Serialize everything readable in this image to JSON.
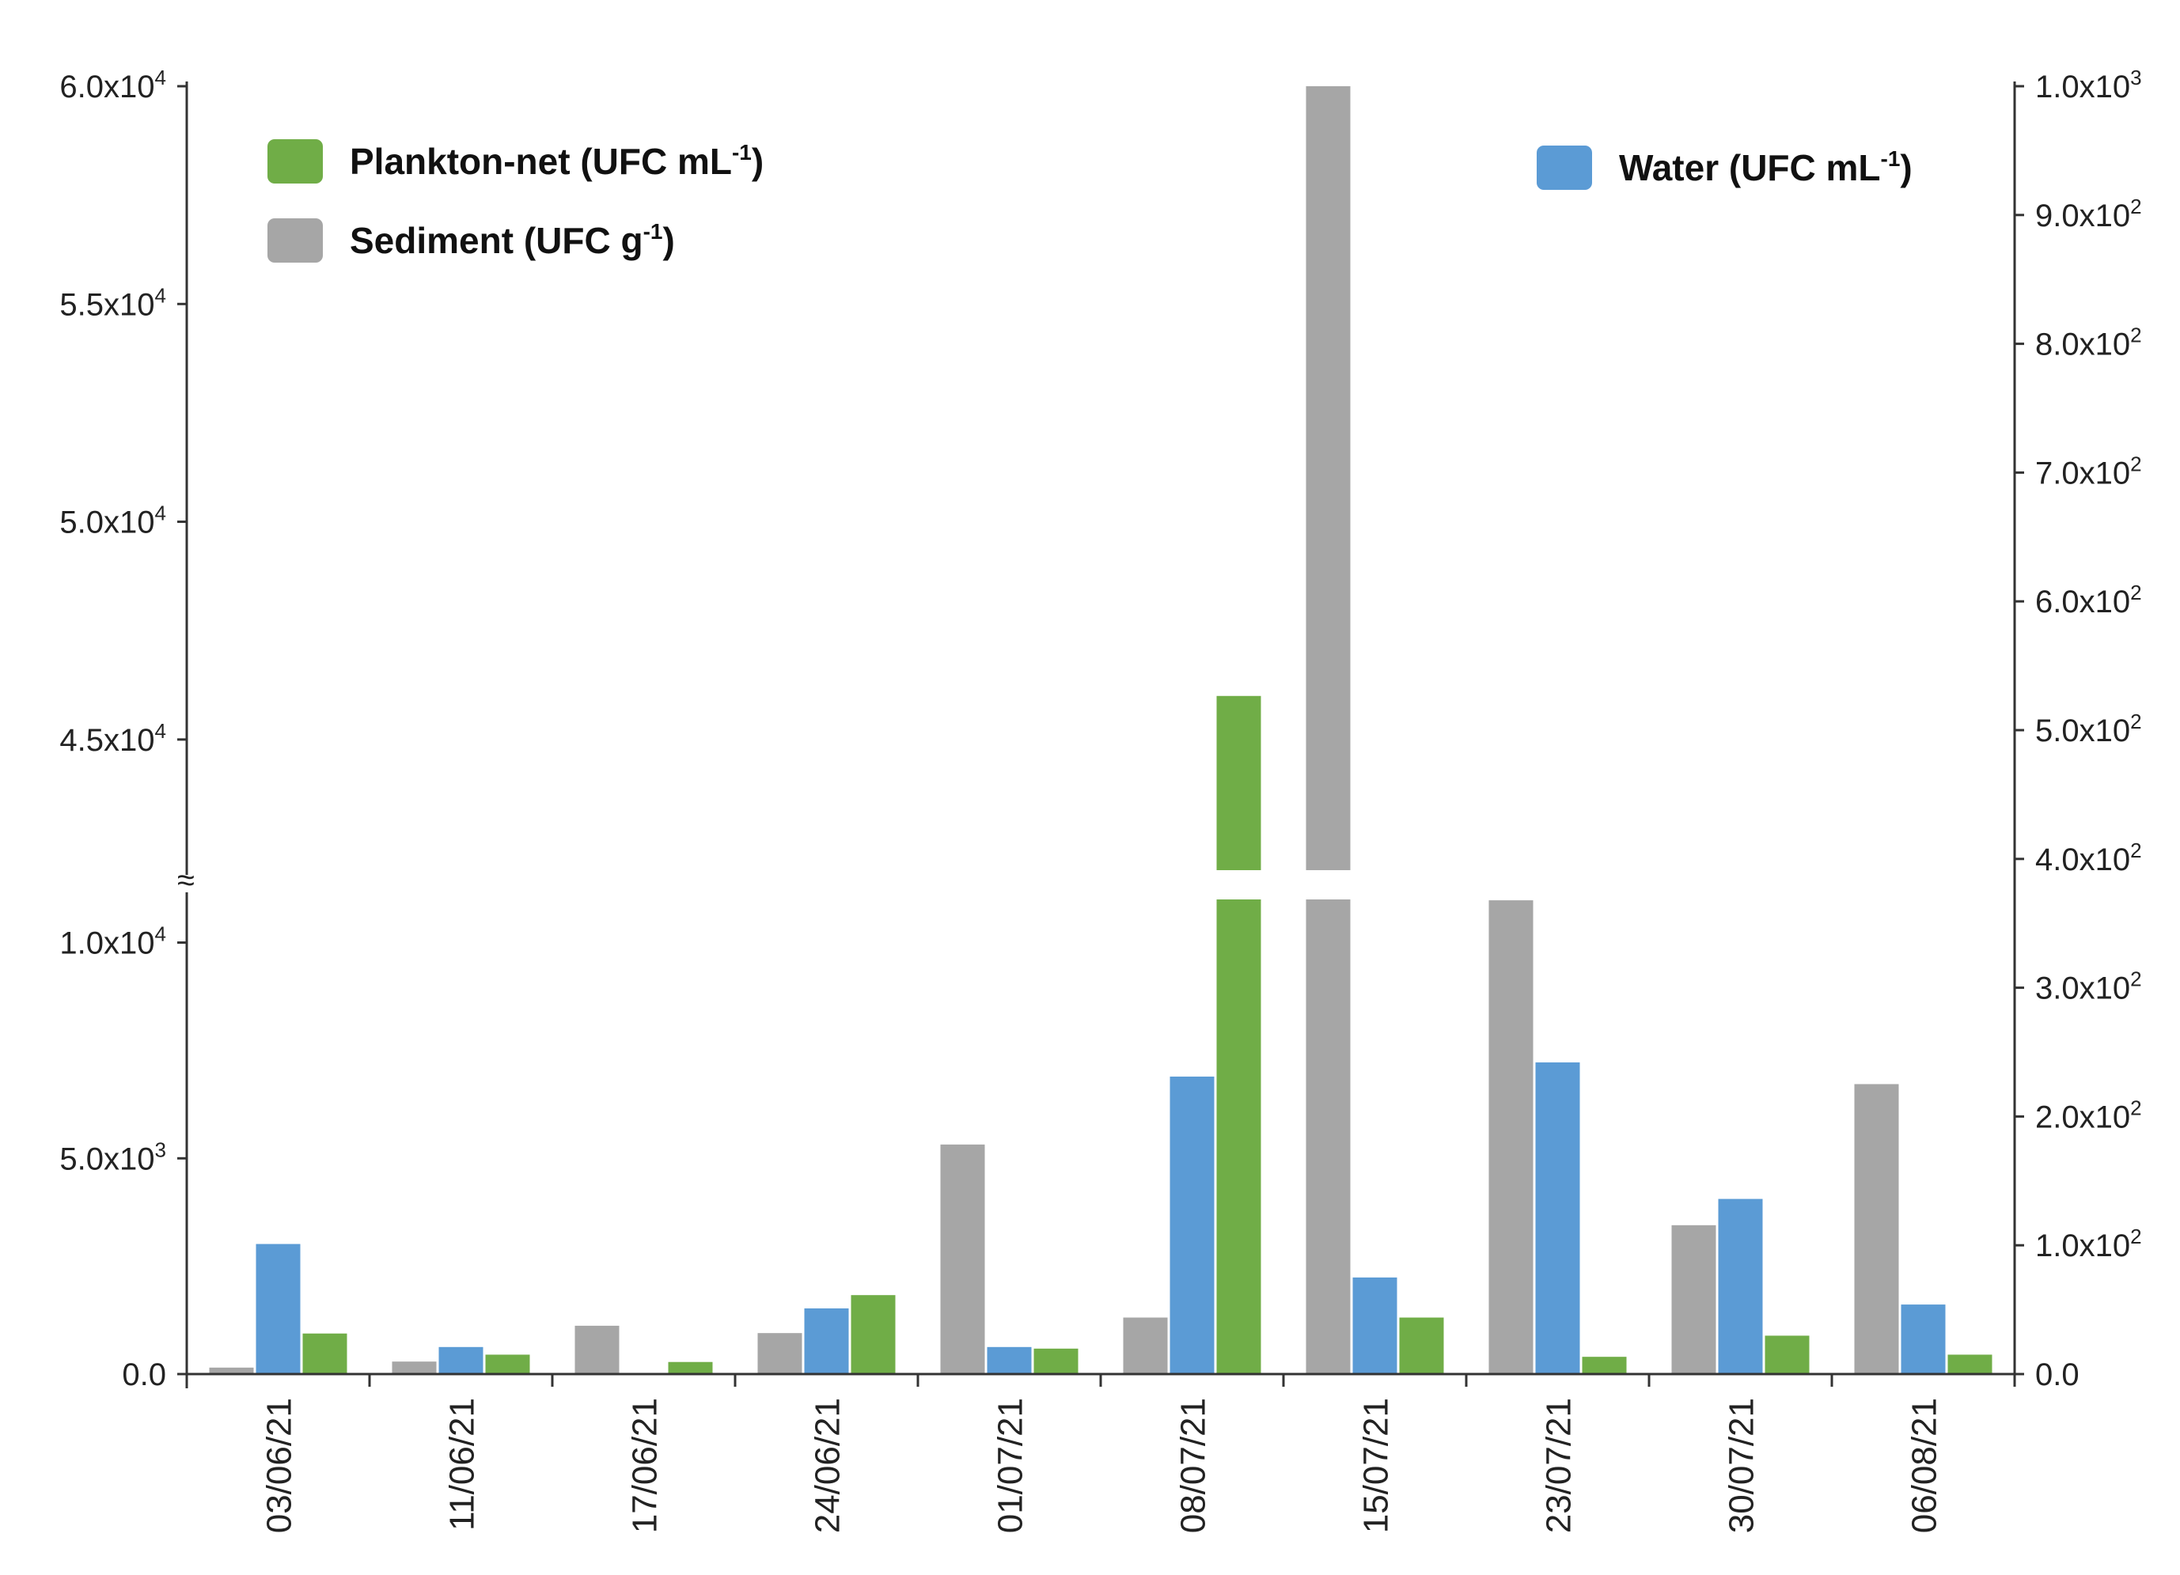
{
  "chart_data": {
    "type": "bar",
    "categories": [
      "03/06/21",
      "11/06/21",
      "17/06/21",
      "24/06/21",
      "01/07/21",
      "08/07/21",
      "15/07/21",
      "23/07/21",
      "30/07/21",
      "06/08/21"
    ],
    "series": [
      {
        "name": "Sediment (UFC g-1)",
        "axis": "left",
        "color": "#a6a6a6",
        "values": [
          150,
          290,
          1120,
          950,
          5320,
          1310,
          60000,
          10980,
          3450,
          6720
        ]
      },
      {
        "name": "Water (UFC mL-1)",
        "axis": "right",
        "color": "#5b9bd5",
        "values": [
          101,
          21,
          0,
          51,
          21,
          231,
          75,
          242,
          136,
          54
        ]
      },
      {
        "name": "Plankton-net (UFC mL-1)",
        "axis": "left",
        "color": "#70ad47",
        "values": [
          940,
          450,
          280,
          1830,
          590,
          46000,
          1310,
          400,
          890,
          450
        ]
      }
    ],
    "left_axis": {
      "lower_range": [
        0,
        11000
      ],
      "upper_range": [
        42000,
        60000
      ],
      "break": "between 11000 and 42000",
      "ticks": [
        {
          "value": 0,
          "base": "0.0",
          "exp": ""
        },
        {
          "value": 5000,
          "base": "5.0x10",
          "exp": "3"
        },
        {
          "value": 10000,
          "base": "1.0x10",
          "exp": "4"
        },
        {
          "value": 45000,
          "base": "4.5x10",
          "exp": "4"
        },
        {
          "value": 50000,
          "base": "5.0x10",
          "exp": "4"
        },
        {
          "value": 55000,
          "base": "5.5x10",
          "exp": "4"
        },
        {
          "value": 60000,
          "base": "6.0x10",
          "exp": "4"
        }
      ],
      "break_symbol": "≈"
    },
    "right_axis": {
      "range": [
        0,
        1000
      ],
      "ticks": [
        {
          "value": 0,
          "base": "0.0",
          "exp": ""
        },
        {
          "value": 100,
          "base": "1.0x10",
          "exp": "2"
        },
        {
          "value": 200,
          "base": "2.0x10",
          "exp": "2"
        },
        {
          "value": 300,
          "base": "3.0x10",
          "exp": "2"
        },
        {
          "value": 400,
          "base": "4.0x10",
          "exp": "2"
        },
        {
          "value": 500,
          "base": "5.0x10",
          "exp": "2"
        },
        {
          "value": 600,
          "base": "6.0x10",
          "exp": "2"
        },
        {
          "value": 700,
          "base": "7.0x10",
          "exp": "2"
        },
        {
          "value": 800,
          "base": "8.0x10",
          "exp": "2"
        },
        {
          "value": 900,
          "base": "9.0x10",
          "exp": "2"
        },
        {
          "value": 1000,
          "base": "1.0x10",
          "exp": "3"
        }
      ]
    },
    "legend": [
      {
        "series": "Plankton-net (UFC mL-1)",
        "pre": "Plankton-net (UFC mL",
        "exp": "-1",
        "post": ")",
        "color": "#70ad47",
        "placement": "top-left"
      },
      {
        "series": "Sediment (UFC g-1)",
        "pre": "Sediment (UFC g",
        "exp": "-1",
        "post": ")",
        "color": "#a6a6a6",
        "placement": "top-left"
      },
      {
        "series": "Water (UFC mL-1)",
        "pre": "Water (UFC mL",
        "exp": "-1",
        "post": ")",
        "color": "#5b9bd5",
        "placement": "top-right"
      }
    ]
  }
}
